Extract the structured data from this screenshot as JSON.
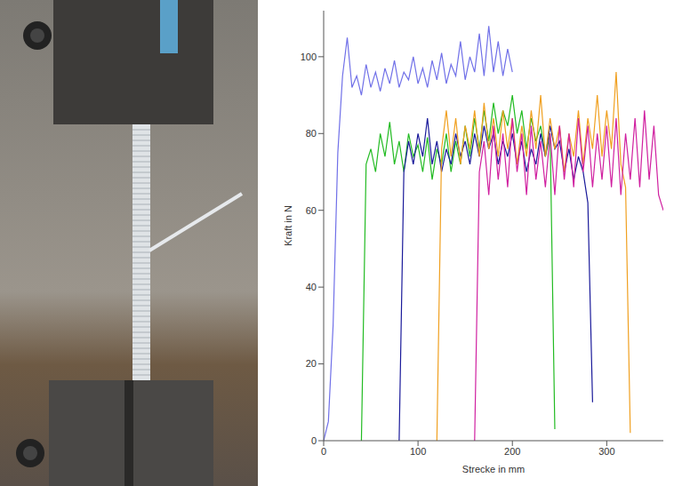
{
  "chart_data": {
    "type": "line",
    "x_label": "Strecke in mm",
    "y_label": "Kraft in N",
    "xlim": [
      0,
      360
    ],
    "ylim": [
      0,
      112
    ],
    "xticks": [
      0,
      100,
      200,
      300
    ],
    "yticks": [
      0,
      20,
      40,
      60,
      80,
      100
    ],
    "grid": false,
    "x": [
      0,
      5,
      10,
      15,
      20,
      25,
      30,
      35,
      40,
      45,
      50,
      55,
      60,
      65,
      70,
      75,
      80,
      85,
      90,
      95,
      100,
      105,
      110,
      115,
      120,
      125,
      130,
      135,
      140,
      145,
      150,
      155,
      160,
      165,
      170,
      175,
      180,
      185,
      190,
      195,
      200,
      205,
      210,
      215,
      220,
      225,
      230,
      235,
      240,
      245,
      250,
      255,
      260,
      265,
      270,
      275,
      280,
      285,
      290,
      295,
      300,
      305,
      310,
      315,
      320,
      325,
      330,
      335,
      340,
      345,
      350,
      355,
      360
    ],
    "series": [
      {
        "color": "#7070e8",
        "values": [
          0,
          5,
          30,
          75,
          95,
          105,
          92,
          95,
          90,
          98,
          92,
          96,
          91,
          97,
          93,
          99,
          92,
          96,
          94,
          100,
          93,
          97,
          92,
          99,
          94,
          101,
          93,
          98,
          95,
          104,
          94,
          100,
          96,
          106,
          95,
          108,
          96,
          104,
          95,
          102,
          96,
          null,
          null,
          null,
          null,
          null,
          null,
          null,
          null,
          null,
          null,
          null,
          null,
          null,
          null,
          null,
          null,
          null,
          null,
          null,
          null,
          null,
          null,
          null,
          null,
          null,
          null,
          null,
          null,
          null,
          null,
          null,
          null
        ]
      },
      {
        "color": "#22bb22",
        "values": [
          null,
          null,
          null,
          null,
          null,
          null,
          null,
          null,
          0,
          72,
          76,
          70,
          80,
          74,
          83,
          72,
          78,
          70,
          80,
          74,
          77,
          70,
          79,
          68,
          76,
          72,
          80,
          70,
          78,
          72,
          82,
          74,
          84,
          76,
          86,
          78,
          88,
          80,
          86,
          82,
          90,
          80,
          86,
          76,
          84,
          78,
          82,
          74,
          80,
          3,
          null,
          null,
          null,
          null,
          null,
          null,
          null,
          null,
          null,
          null,
          null,
          null,
          null,
          null,
          null,
          null,
          null,
          null,
          null,
          null,
          null,
          null,
          null
        ]
      },
      {
        "color": "#1a1a9a",
        "values": [
          null,
          null,
          null,
          null,
          null,
          null,
          null,
          null,
          null,
          null,
          null,
          null,
          null,
          null,
          null,
          null,
          0,
          70,
          78,
          72,
          80,
          74,
          84,
          72,
          78,
          70,
          76,
          72,
          80,
          74,
          78,
          72,
          80,
          74,
          82,
          76,
          80,
          72,
          78,
          74,
          80,
          72,
          78,
          70,
          76,
          72,
          80,
          74,
          82,
          76,
          78,
          70,
          76,
          68,
          74,
          70,
          62,
          10,
          null,
          null,
          null,
          null,
          null,
          null,
          null,
          null,
          null,
          null,
          null,
          null,
          null,
          null,
          null
        ]
      },
      {
        "color": "#f0a020",
        "values": [
          null,
          null,
          null,
          null,
          null,
          null,
          null,
          null,
          null,
          null,
          null,
          null,
          null,
          null,
          null,
          null,
          null,
          null,
          null,
          null,
          null,
          null,
          null,
          null,
          0,
          76,
          86,
          74,
          84,
          72,
          82,
          76,
          86,
          74,
          88,
          76,
          84,
          74,
          86,
          76,
          84,
          72,
          82,
          74,
          86,
          76,
          90,
          74,
          84,
          76,
          82,
          70,
          80,
          74,
          86,
          72,
          84,
          76,
          90,
          74,
          86,
          76,
          96,
          72,
          66,
          2,
          null,
          null,
          null,
          null,
          null,
          null,
          null
        ]
      },
      {
        "color": "#d020a0",
        "values": [
          null,
          null,
          null,
          null,
          null,
          null,
          null,
          null,
          null,
          null,
          null,
          null,
          null,
          null,
          null,
          null,
          null,
          null,
          null,
          null,
          null,
          null,
          null,
          null,
          null,
          null,
          null,
          null,
          null,
          null,
          null,
          null,
          0,
          70,
          78,
          64,
          82,
          68,
          80,
          66,
          84,
          70,
          80,
          64,
          82,
          68,
          78,
          66,
          80,
          64,
          82,
          68,
          80,
          66,
          84,
          70,
          82,
          66,
          80,
          68,
          82,
          66,
          84,
          64,
          80,
          68,
          84,
          66,
          86,
          68,
          82,
          64,
          60
        ]
      }
    ]
  }
}
